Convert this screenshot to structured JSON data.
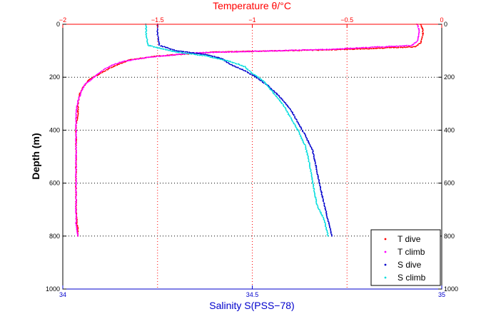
{
  "chart_data": {
    "type": "scatter",
    "title": "Temperature θ/°C",
    "xlabel": "Salinity S(PSS−78)",
    "ylabel": "Depth (m)",
    "temperature_axis": {
      "range": [
        -2,
        0
      ],
      "ticks": [
        -2,
        -1.5,
        -1,
        -0.5,
        0
      ],
      "tick_labels": [
        "−2",
        "−1.5",
        "−1",
        "−0.5",
        "0"
      ]
    },
    "salinity_axis": {
      "range": [
        34,
        35
      ],
      "ticks": [
        34,
        34.5,
        35
      ],
      "tick_labels": [
        "34",
        "34.5",
        "35"
      ]
    },
    "depth_axis": {
      "range": [
        0,
        1000
      ],
      "reversed": true,
      "ticks": [
        0,
        200,
        400,
        600,
        800,
        1000
      ],
      "tick_labels": [
        "0",
        "200",
        "400",
        "600",
        "800",
        "1000"
      ]
    },
    "grid": true,
    "legend_position": "bottom-right",
    "series": [
      {
        "name": "T dive",
        "axis": "temperature",
        "color": "#ff0000",
        "points": [
          [
            -0.11,
            0
          ],
          [
            -0.1,
            20
          ],
          [
            -0.1,
            40
          ],
          [
            -0.11,
            70
          ],
          [
            -0.14,
            85
          ],
          [
            -0.5,
            95
          ],
          [
            -1.2,
            105
          ],
          [
            -1.5,
            120
          ],
          [
            -1.65,
            135
          ],
          [
            -1.7,
            150
          ],
          [
            -1.75,
            165
          ],
          [
            -1.8,
            185
          ],
          [
            -1.84,
            200
          ],
          [
            -1.87,
            215
          ],
          [
            -1.89,
            235
          ],
          [
            -1.91,
            260
          ],
          [
            -1.92,
            300
          ],
          [
            -1.92,
            340
          ],
          [
            -1.93,
            380
          ],
          [
            -1.93,
            420
          ],
          [
            -1.93,
            500
          ],
          [
            -1.93,
            600
          ],
          [
            -1.93,
            700
          ],
          [
            -1.92,
            790
          ],
          [
            -1.92,
            800
          ]
        ]
      },
      {
        "name": "T climb",
        "axis": "temperature",
        "color": "#ff00ff",
        "points": [
          [
            -0.13,
            0
          ],
          [
            -0.12,
            20
          ],
          [
            -0.12,
            40
          ],
          [
            -0.13,
            65
          ],
          [
            -0.16,
            80
          ],
          [
            -0.6,
            95
          ],
          [
            -1.3,
            108
          ],
          [
            -1.55,
            125
          ],
          [
            -1.68,
            140
          ],
          [
            -1.74,
            155
          ],
          [
            -1.78,
            170
          ],
          [
            -1.82,
            190
          ],
          [
            -1.85,
            210
          ],
          [
            -1.88,
            225
          ],
          [
            -1.9,
            250
          ],
          [
            -1.92,
            290
          ],
          [
            -1.93,
            330
          ],
          [
            -1.93,
            380
          ],
          [
            -1.93,
            450
          ],
          [
            -1.93,
            550
          ],
          [
            -1.93,
            650
          ],
          [
            -1.93,
            750
          ],
          [
            -1.92,
            800
          ]
        ]
      },
      {
        "name": "S dive",
        "axis": "salinity",
        "color": "#0000cc",
        "points": [
          [
            34.25,
            0
          ],
          [
            34.25,
            40
          ],
          [
            34.255,
            80
          ],
          [
            34.3,
            100
          ],
          [
            34.38,
            115
          ],
          [
            34.42,
            130
          ],
          [
            34.44,
            150
          ],
          [
            34.48,
            175
          ],
          [
            34.51,
            200
          ],
          [
            34.54,
            230
          ],
          [
            34.57,
            270
          ],
          [
            34.6,
            320
          ],
          [
            34.62,
            370
          ],
          [
            34.64,
            420
          ],
          [
            34.66,
            480
          ],
          [
            34.67,
            550
          ],
          [
            34.68,
            620
          ],
          [
            34.69,
            680
          ],
          [
            34.7,
            740
          ],
          [
            34.71,
            800
          ]
        ]
      },
      {
        "name": "S climb",
        "axis": "salinity",
        "color": "#00dddd",
        "points": [
          [
            34.22,
            0
          ],
          [
            34.22,
            40
          ],
          [
            34.225,
            80
          ],
          [
            34.3,
            105
          ],
          [
            34.38,
            120
          ],
          [
            34.44,
            140
          ],
          [
            34.48,
            160
          ],
          [
            34.5,
            185
          ],
          [
            34.53,
            215
          ],
          [
            34.55,
            250
          ],
          [
            34.58,
            300
          ],
          [
            34.6,
            350
          ],
          [
            34.62,
            400
          ],
          [
            34.64,
            460
          ],
          [
            34.65,
            520
          ],
          [
            34.66,
            600
          ],
          [
            34.67,
            680
          ],
          [
            34.69,
            740
          ],
          [
            34.7,
            800
          ]
        ]
      }
    ]
  }
}
